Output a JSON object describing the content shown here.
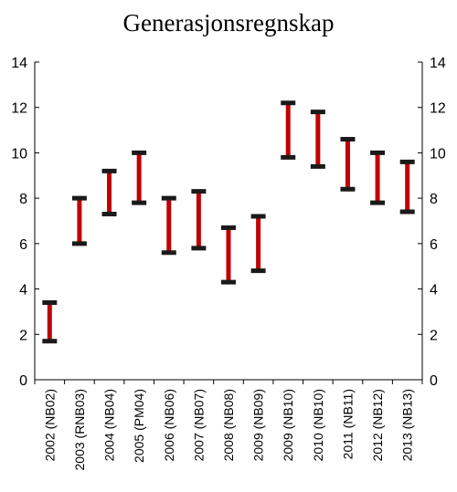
{
  "chart_data": {
    "type": "range-bar",
    "title": "Generasjonsregnskap",
    "xlabel": "",
    "ylabel": "",
    "ylim": [
      0,
      14
    ],
    "yticks": [
      0,
      2,
      4,
      6,
      8,
      10,
      12,
      14
    ],
    "right_axis": true,
    "grid": false,
    "colors": {
      "bar": "#C00000",
      "cap": "#1a1a1a"
    },
    "categories": [
      "2002 (NB02)",
      "2003 (RNB03)",
      "2004 (NB04)",
      "2005 (PM04)",
      "2006 (NB06)",
      "2007 (NB07)",
      "2008 (NB08)",
      "2009 (NB09)",
      "2009 (NB10)",
      "2010 (NB10)",
      "2011 (NB11)",
      "2012 (NB12)",
      "2013 (NB13)"
    ],
    "series": [
      {
        "low": [
          1.7,
          6.0,
          7.3,
          7.8,
          5.6,
          5.8,
          4.3,
          4.8,
          9.8,
          9.4,
          8.4,
          7.8,
          7.4
        ],
        "high": [
          3.4,
          8.0,
          9.2,
          10.0,
          8.0,
          8.3,
          6.7,
          7.2,
          12.2,
          11.8,
          10.6,
          10.0,
          9.6
        ]
      }
    ]
  }
}
